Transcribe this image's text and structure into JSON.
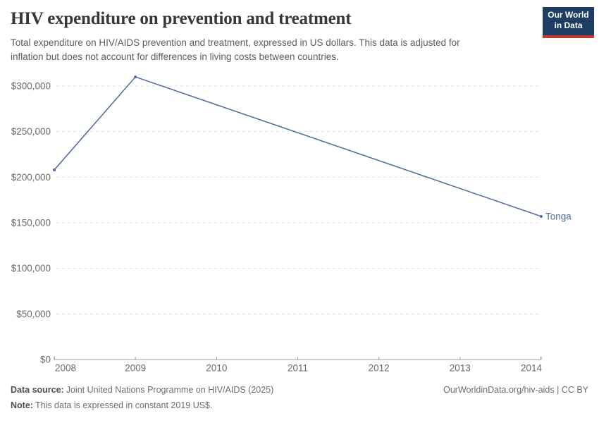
{
  "header": {
    "title": "HIV expenditure on prevention and treatment",
    "subtitle_lines": [
      "Total expenditure on HIV/AIDS prevention and treatment, expressed in US dollars. This data is adjusted for",
      "inflation but does not account for differences in living costs between countries."
    ],
    "logo": {
      "line1": "Our World",
      "line2": "in Data",
      "bg_color": "#1d3d63",
      "bar_color": "#c2372e"
    }
  },
  "chart_data": {
    "type": "line",
    "title": "HIV expenditure on prevention and treatment",
    "xlabel": "",
    "ylabel": "",
    "xlim": [
      2008,
      2014
    ],
    "ylim": [
      0,
      310000
    ],
    "grid": true,
    "legend_position": "end-of-line-label",
    "x_ticks": [
      2008,
      2009,
      2010,
      2011,
      2012,
      2013,
      2014
    ],
    "y_ticks": [
      0,
      50000,
      100000,
      150000,
      200000,
      250000,
      300000
    ],
    "y_tick_labels": [
      "$0",
      "$50,000",
      "$100,000",
      "$150,000",
      "$200,000",
      "$250,000",
      "$300,000"
    ],
    "series": [
      {
        "name": "Tonga",
        "color": "#4c6a9c",
        "points": [
          {
            "x": 2008,
            "y": 208000
          },
          {
            "x": 2009,
            "y": 310000
          },
          {
            "x": 2014,
            "y": 157000
          }
        ]
      }
    ]
  },
  "styles": {
    "grid_color": "#e0e0e0",
    "axis_color": "#9e9e9e",
    "tick_label_color": "#6b6b6b"
  },
  "footer": {
    "datasource_label": "Data source:",
    "datasource_value": "Joint United Nations Programme on HIV/AIDS (2025)",
    "note_label": "Note:",
    "note_value": "This data is expressed in constant 2019 US$.",
    "citation": "OurWorldinData.org/hiv-aids | CC BY"
  }
}
